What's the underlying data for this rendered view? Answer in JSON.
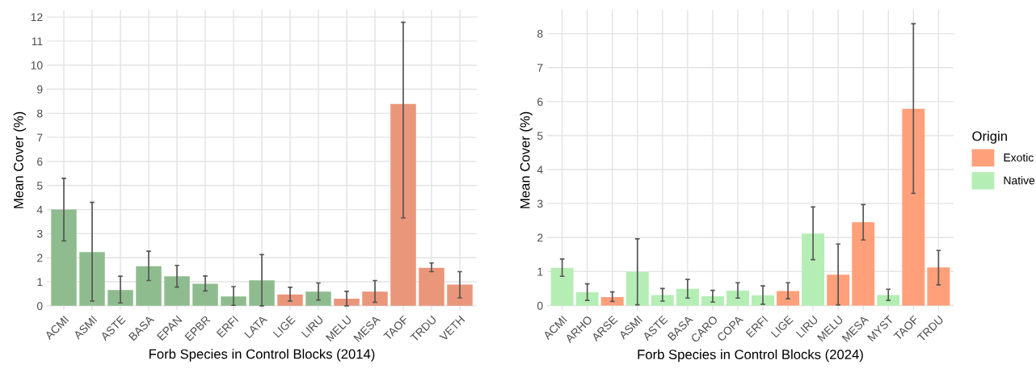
{
  "chart_data": [
    {
      "type": "bar",
      "xlabel": "Forb Species in Control Blocks (2014)",
      "ylabel": "Mean Cover (%)",
      "categories": [
        "ACMI",
        "ASMI",
        "ASTE",
        "BASA",
        "EPAN",
        "EPBR",
        "ERFI",
        "LATA",
        "LIGE",
        "LIRU",
        "MELU",
        "MESA",
        "TAOF",
        "TRDU",
        "VETH"
      ],
      "series": [
        {
          "color": "#8fbc8f",
          "values": [
            4.0,
            2.23,
            0.66,
            1.65,
            1.23,
            0.92,
            0.39,
            1.06,
            null,
            0.59,
            null,
            null,
            null,
            null,
            null
          ],
          "errors": [
            [
              2.7,
              5.3
            ],
            [
              0.2,
              4.3
            ],
            [
              0.12,
              1.23
            ],
            [
              1.05,
              2.27
            ],
            [
              0.78,
              1.68
            ],
            [
              0.62,
              1.24
            ],
            [
              0.02,
              0.8
            ],
            [
              0.0,
              2.13
            ],
            null,
            [
              0.24,
              0.95
            ],
            null,
            null,
            null,
            null,
            null
          ]
        },
        {
          "color": "#e9967a",
          "values": [
            null,
            null,
            null,
            null,
            null,
            null,
            null,
            null,
            0.47,
            null,
            0.3,
            0.59,
            8.39,
            1.58,
            0.88
          ],
          "errors": [
            null,
            null,
            null,
            null,
            null,
            null,
            null,
            null,
            [
              0.2,
              0.77
            ],
            null,
            [
              0.0,
              0.6
            ],
            [
              0.15,
              1.05
            ],
            [
              3.65,
              11.78
            ],
            [
              1.42,
              1.78
            ],
            [
              0.33,
              1.42
            ]
          ]
        }
      ],
      "ylim": [
        -0.2,
        12.3
      ],
      "yticks": [
        0,
        1,
        2,
        3,
        4,
        5,
        6,
        7,
        8,
        9,
        10,
        11,
        12
      ],
      "grid": true
    },
    {
      "type": "bar",
      "xlabel": "Forb Species in Control Blocks (2024)",
      "ylabel": "Mean Cover (%)",
      "legend_title": "Origin",
      "categories": [
        "ACMI",
        "ARHO",
        "ARSE",
        "ASMI",
        "ASTE",
        "BASA",
        "CARO",
        "COPA",
        "ERFI",
        "LIGE",
        "LIRU",
        "MELU",
        "MESA",
        "MYST",
        "TAOF",
        "TRDU"
      ],
      "series": [
        {
          "name": "Exotic",
          "color": "#ffa07a",
          "values": [
            null,
            null,
            0.25,
            null,
            null,
            null,
            null,
            null,
            null,
            0.43,
            null,
            0.91,
            2.45,
            null,
            5.79,
            1.12
          ],
          "errors": [
            null,
            null,
            [
              0.12,
              0.4
            ],
            null,
            null,
            null,
            null,
            null,
            null,
            [
              0.2,
              0.67
            ],
            null,
            [
              0.02,
              1.81
            ],
            [
              1.93,
              2.97
            ],
            null,
            [
              3.3,
              8.29
            ],
            [
              0.61,
              1.62
            ]
          ]
        },
        {
          "name": "Native",
          "color": "#b4eeb4",
          "values": [
            1.11,
            0.39,
            null,
            0.99,
            0.31,
            0.49,
            0.27,
            0.44,
            0.3,
            null,
            2.12,
            null,
            null,
            0.31,
            null,
            null
          ],
          "errors": [
            [
              0.86,
              1.37
            ],
            [
              0.15,
              0.64
            ],
            null,
            [
              0.02,
              1.96
            ],
            [
              0.13,
              0.5
            ],
            [
              0.22,
              0.77
            ],
            [
              0.1,
              0.45
            ],
            [
              0.22,
              0.67
            ],
            [
              0.04,
              0.58
            ],
            null,
            [
              1.35,
              2.9
            ],
            null,
            null,
            [
              0.15,
              0.48
            ],
            null,
            null
          ]
        }
      ],
      "ylim": [
        -0.15,
        8.7
      ],
      "yticks": [
        0,
        1,
        2,
        3,
        4,
        5,
        6,
        7,
        8
      ],
      "grid": true,
      "legend": "right"
    }
  ]
}
